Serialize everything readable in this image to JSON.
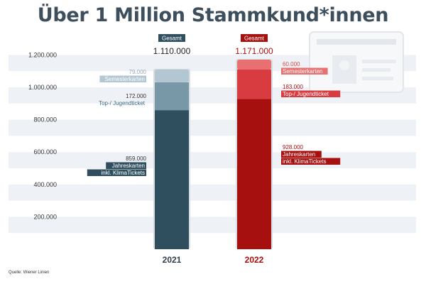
{
  "title": "Über 1 Million Stammkund*innen",
  "source": "Quelle: Wiener Linien",
  "chart_data": {
    "type": "bar",
    "stacked": true,
    "categories": [
      "2021",
      "2022"
    ],
    "ylim": [
      0,
      1300000
    ],
    "yticks": [
      {
        "value": 200000,
        "label": "200.000"
      },
      {
        "value": 400000,
        "label": "400.000"
      },
      {
        "value": 600000,
        "label": "600.000"
      },
      {
        "value": 800000,
        "label": "800.000"
      },
      {
        "value": 1000000,
        "label": "1.000.000"
      },
      {
        "value": 1200000,
        "label": "1.200.000"
      }
    ],
    "total_caption": "Gesamt",
    "totals": [
      {
        "value": 1110000,
        "label": "1.110.000"
      },
      {
        "value": 1171000,
        "label": "1.171.000"
      }
    ],
    "series": [
      {
        "name": "Jahreskarten inkl. KlimaTickets",
        "label_lines": [
          "Jahreskarten",
          "inkl. KlimaTickets"
        ],
        "values": [
          859000,
          928000
        ],
        "value_labels": [
          "859.000",
          "928.000"
        ]
      },
      {
        "name": "Top-/ Jugendticket",
        "label_lines": [
          "Top-/ Jugendticket"
        ],
        "values": [
          172000,
          183000
        ],
        "value_labels": [
          "172.000",
          "183.000"
        ]
      },
      {
        "name": "Semesterkarten",
        "label_lines": [
          "Semesterkarten"
        ],
        "values": [
          79000,
          60000
        ],
        "value_labels": [
          "79.000",
          "60.000"
        ]
      }
    ],
    "colors": {
      "2021": [
        "#2f4f5f",
        "#7898a8",
        "#b3c7d3"
      ],
      "2022": [
        "#a6100f",
        "#d93c40",
        "#e87070"
      ],
      "year_text": [
        "#2f3f4a",
        "#a6100f"
      ],
      "grid_band": "#eef1f5"
    }
  }
}
